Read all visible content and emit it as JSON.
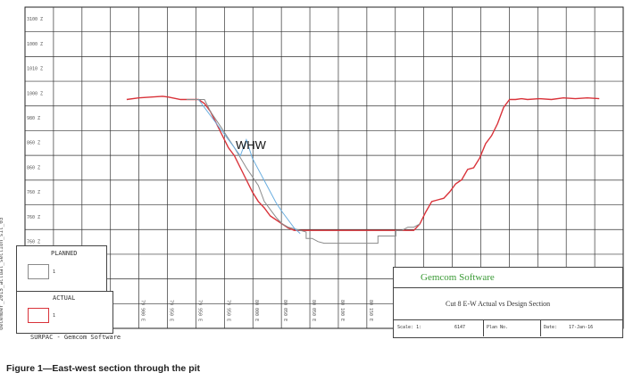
{
  "chart_data": {
    "type": "line",
    "ylabel_ticks": [
      "3100 Z",
      "1000 Z",
      "1010 Z",
      "1000 Z",
      "980 Z",
      "860 Z",
      "860 Z",
      "760 Z",
      "760 Z",
      "760 Z",
      "760 Z"
    ],
    "xlabel_ticks": [
      "79 900 E",
      "79 950 E",
      "79 950 E",
      "79 950 E",
      "80 000 E",
      "80 050 E",
      "80 050 E",
      "80 100 E",
      "80 150 E",
      "80 200 E"
    ],
    "ylim": [
      700,
      1100
    ],
    "xlim": [
      0,
      100
    ],
    "grid": true,
    "annotation": "WHW",
    "series": [
      {
        "name": "ACTUAL",
        "color": "#d9333a",
        "x": [
          17,
          19,
          21,
          23,
          24,
          26,
          27,
          29,
          30,
          31,
          32,
          33,
          34,
          35,
          36,
          37,
          38,
          39,
          40,
          41,
          42,
          43,
          44,
          45,
          46,
          47,
          50,
          55,
          60,
          63,
          65,
          66,
          67,
          68,
          69,
          70,
          71,
          72,
          73,
          74,
          75,
          76,
          77,
          78,
          79,
          80,
          81,
          82,
          83,
          84,
          86,
          88,
          90,
          92,
          94,
          96
        ],
        "y": [
          985,
          987,
          988,
          989,
          988,
          985,
          985,
          985,
          980,
          970,
          955,
          940,
          925,
          915,
          900,
          885,
          870,
          858,
          850,
          840,
          835,
          830,
          825,
          822,
          822,
          822,
          822,
          822,
          822,
          822,
          822,
          830,
          845,
          858,
          860,
          862,
          870,
          880,
          885,
          898,
          900,
          912,
          930,
          940,
          955,
          975,
          985,
          985,
          986,
          985,
          986,
          985,
          987,
          986,
          987,
          986
        ]
      },
      {
        "name": "PLANNED",
        "color": "#8a8a8a",
        "x": [
          27,
          29,
          30,
          31,
          33,
          35,
          37,
          39,
          40,
          41,
          42,
          43,
          44,
          45,
          46,
          47,
          47,
          48,
          49,
          50,
          55,
          59,
          59,
          60,
          62,
          62,
          63,
          64,
          65,
          66
        ],
        "y": [
          985,
          985,
          985,
          970,
          948,
          925,
          900,
          878,
          858,
          848,
          838,
          830,
          826,
          824,
          822,
          820,
          812,
          812,
          808,
          806,
          806,
          806,
          815,
          815,
          815,
          822,
          822,
          826,
          826,
          830
        ]
      },
      {
        "name": "design",
        "color": "#6aaee0",
        "x": [
          29,
          31,
          33,
          35,
          36,
          37,
          38,
          39,
          40,
          41,
          42,
          43,
          44,
          45,
          46
        ],
        "y": [
          985,
          965,
          945,
          925,
          915,
          935,
          912,
          898,
          884,
          870,
          856,
          845,
          835,
          825,
          818
        ]
      }
    ]
  },
  "side_label": "december_2015_actual_section_sit_03",
  "footer_note": "SURPAC - Gemcom Software",
  "legend": {
    "planned": {
      "title": "PLANNED",
      "num": "1"
    },
    "actual": {
      "title": "ACTUAL",
      "num": "1"
    }
  },
  "title_block": {
    "company": "Gemcom Software",
    "title": "Cut 8 E-W Actual vs Design Section",
    "scale_label": "Scale: 1:",
    "scale_value": "6147",
    "plan_label": "Plan No.",
    "date_label": "Date:",
    "date_value": "17-Jan-16"
  },
  "caption": "Figure 1—East-west section through the pit"
}
